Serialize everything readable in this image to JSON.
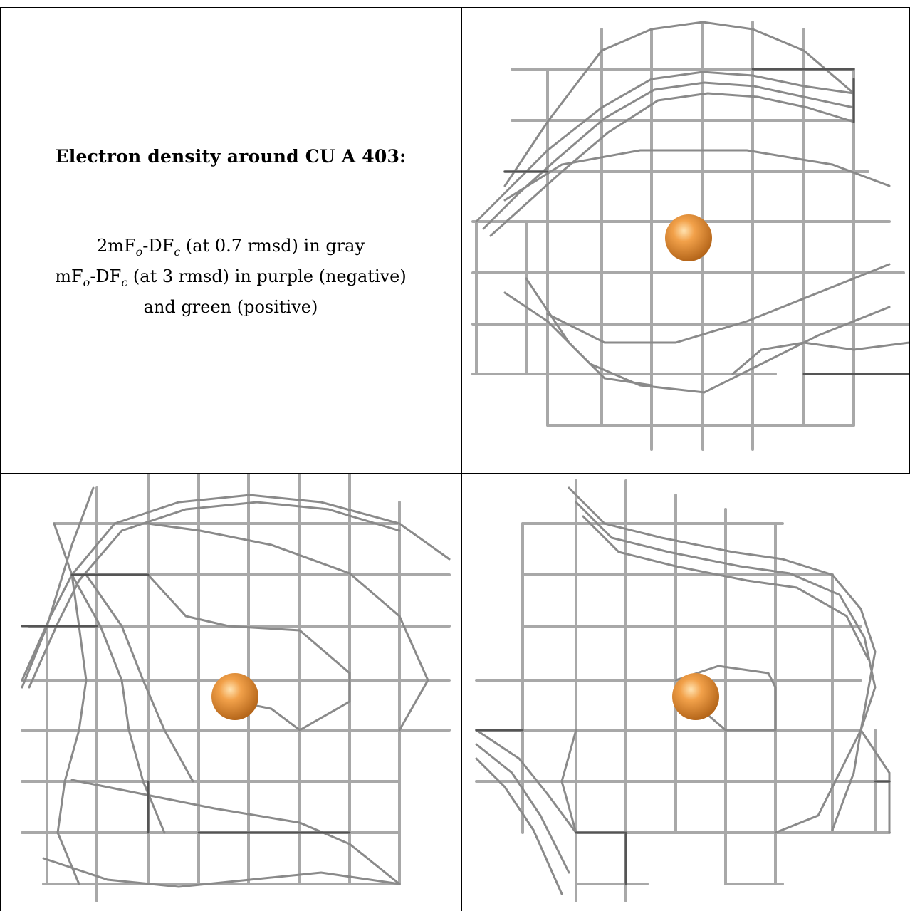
{
  "caption": {
    "title": "Electron density around CU A 403:",
    "line1_pre": "2mF",
    "line1_sub1": "o",
    "line1_mid": "-DF",
    "line1_sub2": "c",
    "line1_post": " (at 0.7 rmsd) in gray",
    "line2_pre": "mF",
    "line2_sub1": "o",
    "line2_mid": "-DF",
    "line2_sub2": "c",
    "line2_post": " (at 3 rmsd) in purple (negative)",
    "line3": "and green (positive)"
  },
  "colors": {
    "mesh": "#9a9a9a",
    "mesh_dark": "#5a5a5a",
    "mesh_light": "#d4d4d4",
    "atom": "#e38a25",
    "atom_highlight": "#ffd28a",
    "border": "#000000"
  },
  "panels": [
    {
      "name": "view-top-right",
      "atom": "CU"
    },
    {
      "name": "view-bottom-left",
      "atom": "CU"
    },
    {
      "name": "view-bottom-right",
      "atom": "CU"
    }
  ]
}
